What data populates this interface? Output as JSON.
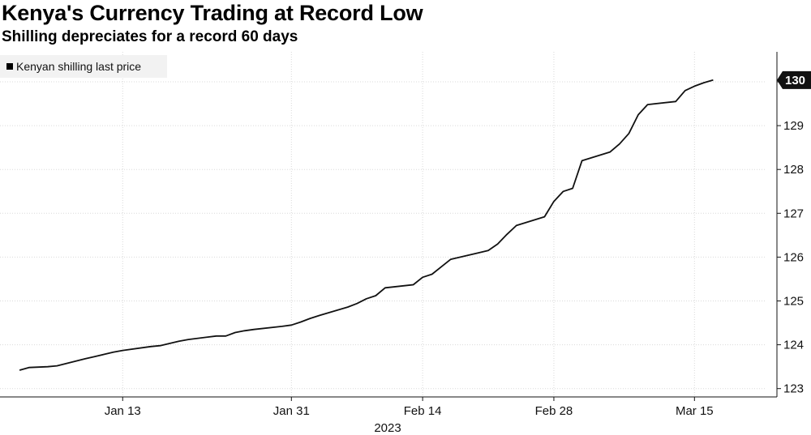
{
  "header": {
    "title": "Kenya's Currency Trading at Record Low",
    "subtitle": "Shilling depreciates for a record 60 days"
  },
  "chart_data": {
    "type": "line",
    "title": "Kenya's Currency Trading at Record Low",
    "subtitle": "Shilling depreciates for a record 60 days",
    "xlabel": "2023",
    "ylabel": "",
    "ylim": [
      123,
      130.5
    ],
    "y_ticks": [
      123,
      124,
      125,
      126,
      127,
      128,
      129,
      130
    ],
    "x_ticks": [
      {
        "day": 13,
        "label": "Jan 13"
      },
      {
        "day": 31,
        "label": "Jan 31"
      },
      {
        "day": 45,
        "label": "Feb 14"
      },
      {
        "day": 59,
        "label": "Feb 28"
      },
      {
        "day": 74,
        "label": "Mar 15"
      }
    ],
    "grid": true,
    "legend_position": "top-left",
    "last_price_label": "130",
    "series": [
      {
        "name": "Kenyan shilling last price",
        "color": "#111111",
        "points": [
          [
            2,
            123.42
          ],
          [
            3,
            123.48
          ],
          [
            4,
            123.49
          ],
          [
            5,
            123.5
          ],
          [
            6,
            123.52
          ],
          [
            9,
            123.68
          ],
          [
            10,
            123.73
          ],
          [
            11,
            123.78
          ],
          [
            12,
            123.83
          ],
          [
            13,
            123.87
          ],
          [
            16,
            123.96
          ],
          [
            17,
            123.98
          ],
          [
            18,
            124.03
          ],
          [
            19,
            124.08
          ],
          [
            20,
            124.12
          ],
          [
            23,
            124.2
          ],
          [
            24,
            124.2
          ],
          [
            25,
            124.28
          ],
          [
            26,
            124.32
          ],
          [
            27,
            124.35
          ],
          [
            30,
            124.42
          ],
          [
            31,
            124.45
          ],
          [
            32,
            124.52
          ],
          [
            33,
            124.6
          ],
          [
            34,
            124.67
          ],
          [
            37,
            124.86
          ],
          [
            38,
            124.94
          ],
          [
            39,
            125.05
          ],
          [
            40,
            125.12
          ],
          [
            41,
            125.3
          ],
          [
            44,
            125.37
          ],
          [
            45,
            125.54
          ],
          [
            46,
            125.61
          ],
          [
            47,
            125.78
          ],
          [
            48,
            125.95
          ],
          [
            51,
            126.1
          ],
          [
            52,
            126.15
          ],
          [
            53,
            126.3
          ],
          [
            54,
            126.52
          ],
          [
            55,
            126.72
          ],
          [
            58,
            126.92
          ],
          [
            59,
            127.27
          ],
          [
            60,
            127.5
          ],
          [
            61,
            127.57
          ],
          [
            62,
            128.2
          ],
          [
            65,
            128.4
          ],
          [
            66,
            128.58
          ],
          [
            67,
            128.82
          ],
          [
            68,
            129.25
          ],
          [
            69,
            129.48
          ],
          [
            72,
            129.55
          ],
          [
            73,
            129.8
          ],
          [
            74,
            129.9
          ],
          [
            75,
            129.98
          ],
          [
            76,
            130.04
          ]
        ]
      }
    ]
  }
}
